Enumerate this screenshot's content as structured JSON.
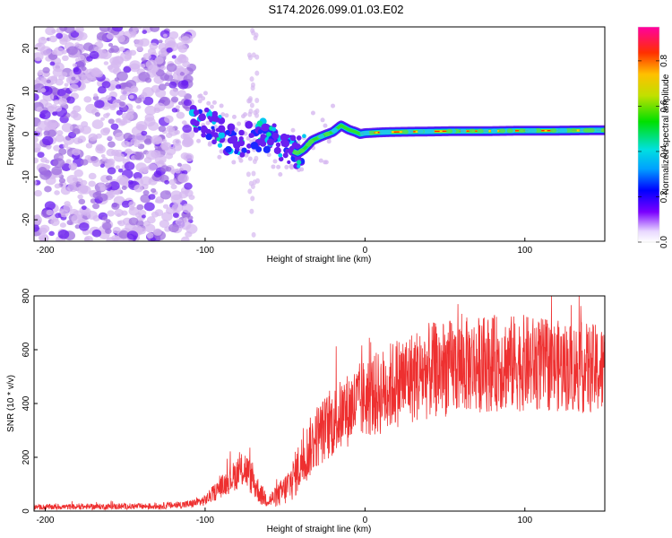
{
  "title": "S174.2026.099.01.03.E02",
  "colors": {
    "snr_line": "#ee3030",
    "dot_faint": "#d6b8f0",
    "dot_mid": "#a070e0",
    "dot_strong": "#6a1ef0",
    "axis": "#000000"
  },
  "chart_data": [
    {
      "type": "heatmap",
      "title": "S174.2026.099.01.03.E02",
      "xlabel": "Height of straight line (km)",
      "ylabel": "Frequency (Hz)",
      "xlim": [
        -207,
        150
      ],
      "ylim": [
        -25,
        25
      ],
      "xticks": [
        -200,
        -100,
        0,
        100
      ],
      "yticks": [
        20,
        10,
        0,
        -10,
        -20
      ],
      "noise_region": {
        "x": [
          -207,
          -108
        ],
        "y": [
          -25,
          25
        ]
      },
      "track": {
        "x": [
          -108,
          -100,
          -92,
          -85,
          -78,
          -70,
          -62,
          -55,
          -48,
          -42,
          -38,
          -33,
          -27,
          -20,
          -15,
          -10,
          -6,
          -3,
          0,
          10,
          20,
          40,
          60,
          80,
          100,
          120,
          150
        ],
        "y": [
          5,
          3,
          1,
          -1,
          -2,
          -1,
          0,
          -2,
          -3.5,
          -4.5,
          -3.5,
          -1.5,
          -0.5,
          0.5,
          2,
          1,
          0.5,
          0,
          0.2,
          0.4,
          0.5,
          0.6,
          0.7,
          0.7,
          0.8,
          0.8,
          0.9
        ]
      },
      "colorbar": {
        "label": "Normalized spectral amplitude",
        "range": [
          0,
          0.95
        ],
        "ticks": [
          "0.0",
          "0.2",
          "0.4",
          "0.6",
          "0.8"
        ]
      }
    },
    {
      "type": "line",
      "xlabel": "Height of straight line (km)",
      "ylabel": "SNR (10 * v/v)",
      "xlim": [
        -207,
        150
      ],
      "ylim": [
        0,
        800
      ],
      "xticks": [
        -200,
        -100,
        0,
        100
      ],
      "yticks": [
        800,
        600,
        400,
        200,
        0
      ],
      "series": [
        {
          "name": "SNR",
          "envelope_x": [
            -207,
            -130,
            -110,
            -100,
            -90,
            -80,
            -75,
            -70,
            -65,
            -60,
            -55,
            -50,
            -45,
            -40,
            -30,
            -20,
            -10,
            0,
            10,
            20,
            40,
            60,
            80,
            100,
            120,
            140,
            150
          ],
          "envelope_mean": [
            15,
            18,
            25,
            40,
            90,
            140,
            160,
            110,
            60,
            40,
            55,
            80,
            120,
            180,
            280,
            330,
            380,
            420,
            440,
            480,
            520,
            540,
            550,
            550,
            540,
            530,
            520
          ],
          "envelope_spread": [
            10,
            12,
            15,
            20,
            40,
            60,
            70,
            60,
            40,
            30,
            40,
            60,
            80,
            100,
            120,
            130,
            140,
            150,
            160,
            170,
            180,
            180,
            180,
            180,
            170,
            170,
            170
          ]
        }
      ]
    }
  ]
}
